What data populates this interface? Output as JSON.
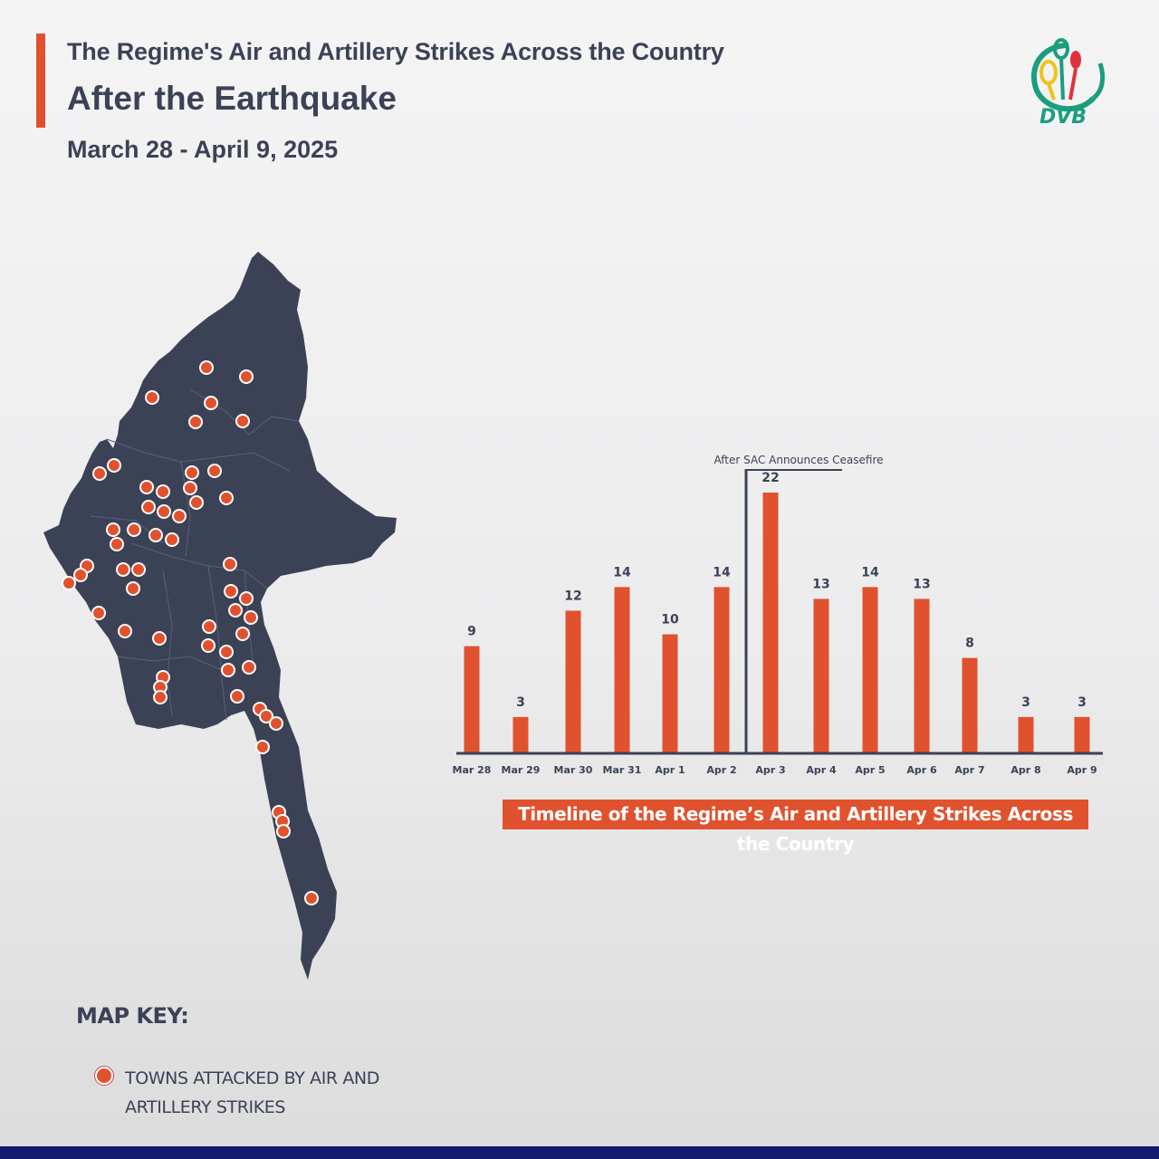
{
  "header": {
    "title_line1": "The Regime's Air and Artillery Strikes Across the Country",
    "title_line2": "After the Earthquake",
    "date_range": "March 28 - April 9, 2025",
    "logo_text": "DVB"
  },
  "colors": {
    "accent": "#e0522e",
    "map_fill": "#3b4256",
    "text": "#3b4256",
    "bottom_bar": "#111a6e",
    "logo_green": "#1a9e7e"
  },
  "chart_data": {
    "type": "bar",
    "categories": [
      "Mar 28",
      "Mar 29",
      "Mar 30",
      "Mar 31",
      "Apr 1",
      "Apr 2",
      "Apr 3",
      "Apr 4",
      "Apr 5",
      "Apr 6",
      "Apr 7",
      "Apr 8",
      "Apr 9"
    ],
    "values": [
      9,
      3,
      12,
      14,
      10,
      14,
      22,
      13,
      14,
      13,
      8,
      3,
      3
    ],
    "title": "",
    "xlabel": "",
    "ylabel": "",
    "ylim": [
      0,
      22
    ],
    "grid": false,
    "annotation": {
      "text": "After SAC Announces Ceasefire",
      "between": [
        "Apr 2",
        "Apr 3"
      ]
    },
    "bar_color": "#e0522e"
  },
  "caption": "Timeline of the Regime’s Air and Artillery Strikes Across the Country",
  "map_key": {
    "title": "MAP KEY:",
    "item_label": "TOWNS ATTACKED BY AIR AND ARTILLERY STRIKES"
  }
}
